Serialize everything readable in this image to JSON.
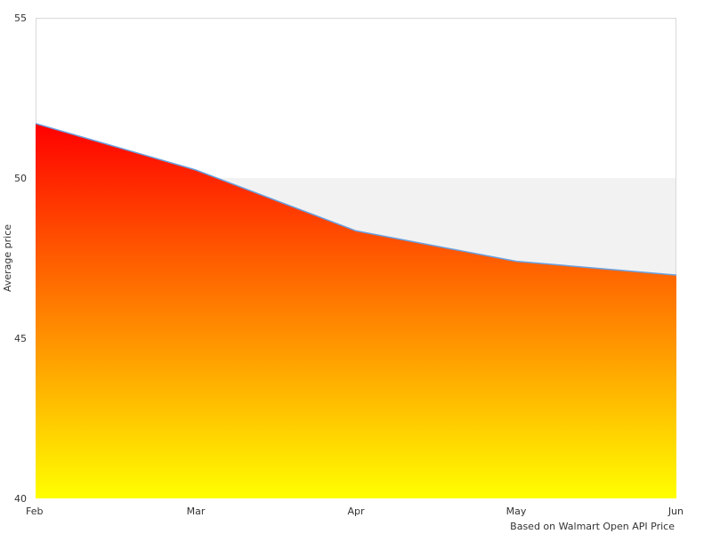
{
  "chart_data": {
    "type": "area",
    "x": [
      "Feb",
      "Mar",
      "Apr",
      "May",
      "Jun"
    ],
    "series": [
      {
        "values": [
          51.7,
          50.25,
          48.35,
          47.4,
          46.97
        ]
      }
    ],
    "ylabel": "Average price",
    "ylim": [
      40,
      55
    ],
    "yticks": [
      40,
      45,
      50,
      55
    ],
    "grid": false,
    "legend": "none",
    "source_note": "Based on Walmart Open API Price",
    "band": {
      "from": 45,
      "to": 50,
      "color": "#f2f2f2"
    },
    "colors": {
      "line": "#6aa0e0",
      "fill_top": "#ff0000",
      "fill_bottom": "#ffff00",
      "plot_border": "#d9d9d9"
    }
  }
}
